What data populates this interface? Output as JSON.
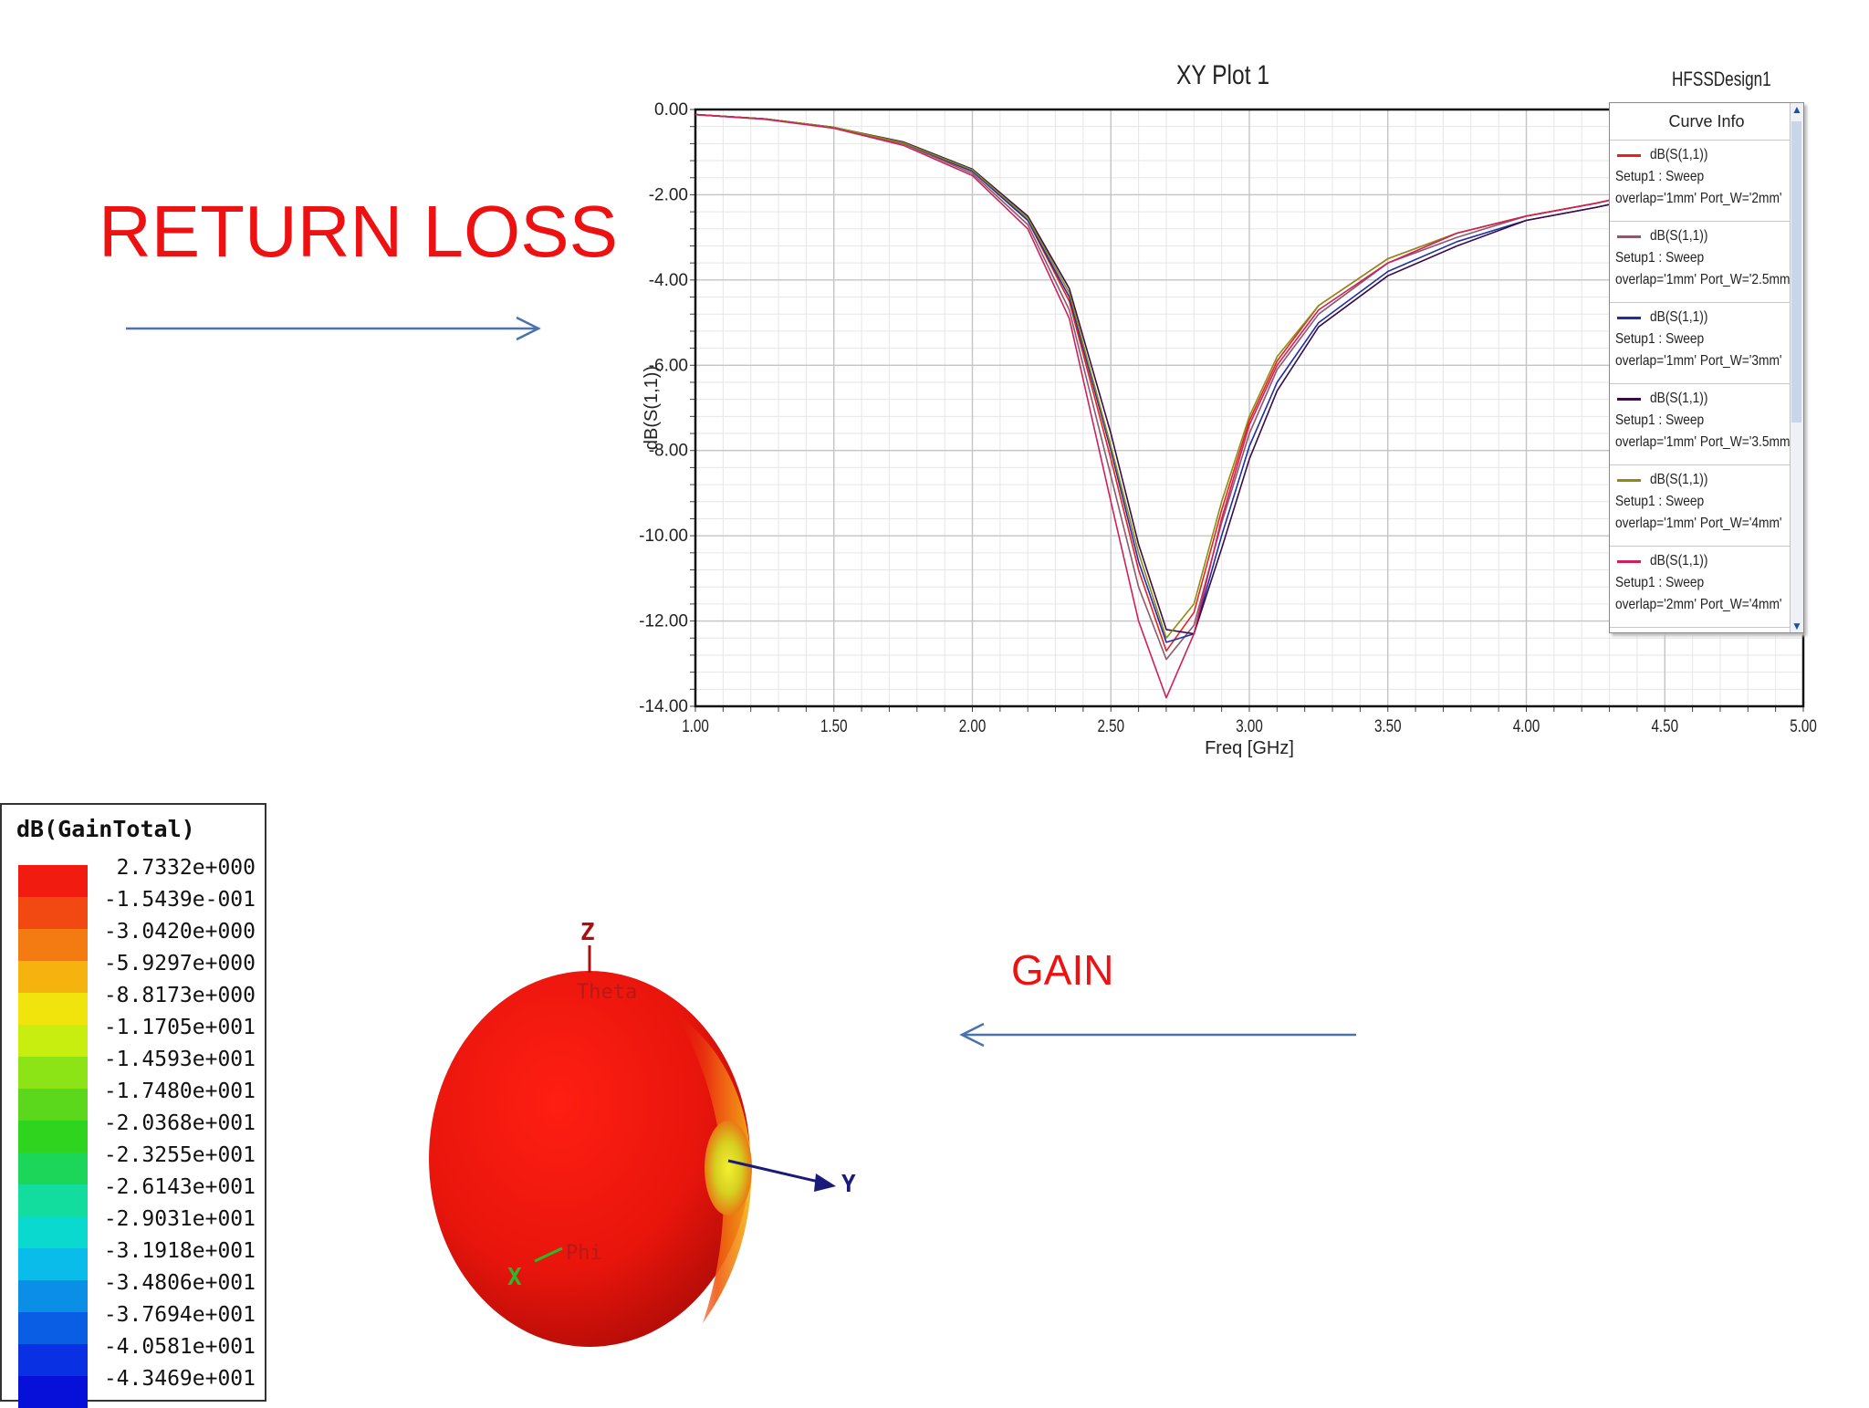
{
  "labels": {
    "return_loss": "RETURN LOSS",
    "gain": "GAIN"
  },
  "chart_data": [
    {
      "type": "line",
      "title": "XY Plot 1",
      "design_name": "HFSSDesign1",
      "xlabel": "Freq [GHz]",
      "ylabel": "dB(S(1,1))",
      "xlim": [
        1.0,
        5.0
      ],
      "ylim": [
        -14.0,
        0.0
      ],
      "grid": true,
      "legend_title": "Curve Info",
      "legend_placement": "top-right",
      "x_ticks": [
        "1.00",
        "1.50",
        "2.00",
        "2.50",
        "3.00",
        "3.50",
        "4.00",
        "4.50",
        "5.00"
      ],
      "y_ticks": [
        "0.00",
        "-2.00",
        "-4.00",
        "-6.00",
        "-8.00",
        "-10.00",
        "-12.00",
        "-14.00"
      ],
      "x": [
        1.0,
        1.25,
        1.5,
        1.75,
        2.0,
        2.2,
        2.35,
        2.5,
        2.6,
        2.7,
        2.8,
        2.9,
        3.0,
        3.1,
        3.25,
        3.5,
        3.75,
        4.0,
        4.25,
        4.32
      ],
      "series": [
        {
          "name": "dB(S(1,1))",
          "setup": "Setup1 : Sweep",
          "variables": "overlap='1mm' Port_W='2mm'",
          "color": "#e82020",
          "values": [
            -0.12,
            -0.22,
            -0.42,
            -0.8,
            -1.45,
            -2.6,
            -4.5,
            -8.2,
            -10.8,
            -12.7,
            -11.8,
            -9.4,
            -7.3,
            -5.9,
            -4.6,
            -3.5,
            -2.9,
            -2.5,
            -2.2,
            -2.1
          ]
        },
        {
          "name": "dB(S(1,1))",
          "setup": "Setup1 : Sweep",
          "variables": "overlap='1mm' Port_W='2.5mm'",
          "color": "#8a5a6e",
          "values": [
            -0.12,
            -0.22,
            -0.42,
            -0.8,
            -1.5,
            -2.7,
            -4.7,
            -8.6,
            -11.2,
            -12.9,
            -12.1,
            -9.7,
            -7.6,
            -6.1,
            -4.8,
            -3.6,
            -3.0,
            -2.5,
            -2.2,
            -2.1
          ]
        },
        {
          "name": "dB(S(1,1))",
          "setup": "Setup1 : Sweep",
          "variables": "overlap='1mm' Port_W='3mm'",
          "color": "#1c2fa8",
          "values": [
            -0.12,
            -0.22,
            -0.42,
            -0.78,
            -1.45,
            -2.6,
            -4.4,
            -8.0,
            -10.6,
            -12.5,
            -12.3,
            -10.0,
            -7.9,
            -6.4,
            -5.0,
            -3.8,
            -3.1,
            -2.6,
            -2.3,
            -2.2
          ]
        },
        {
          "name": "dB(S(1,1))",
          "setup": "Setup1 : Sweep",
          "variables": "overlap='1mm' Port_W='3.5mm'",
          "color": "#3a0c46",
          "values": [
            -0.12,
            -0.22,
            -0.42,
            -0.76,
            -1.4,
            -2.5,
            -4.2,
            -7.6,
            -10.2,
            -12.2,
            -12.3,
            -10.3,
            -8.2,
            -6.6,
            -5.1,
            -3.9,
            -3.2,
            -2.6,
            -2.3,
            -2.2
          ]
        },
        {
          "name": "dB(S(1,1))",
          "setup": "Setup1 : Sweep",
          "variables": "overlap='1mm' Port_W='4mm'",
          "color": "#8c8c10",
          "values": [
            -0.12,
            -0.22,
            -0.42,
            -0.78,
            -1.42,
            -2.55,
            -4.3,
            -7.9,
            -10.4,
            -12.4,
            -11.6,
            -9.2,
            -7.2,
            -5.8,
            -4.6,
            -3.5,
            -2.9,
            -2.5,
            -2.2,
            -2.1
          ]
        },
        {
          "name": "dB(S(1,1))",
          "setup": "Setup1 : Sweep",
          "variables": "overlap='2mm' Port_W='4mm'",
          "color": "#d0205a",
          "values": [
            -0.12,
            -0.23,
            -0.44,
            -0.84,
            -1.55,
            -2.8,
            -4.9,
            -9.2,
            -12.0,
            -13.8,
            -12.3,
            -9.6,
            -7.4,
            -6.0,
            -4.7,
            -3.6,
            -2.9,
            -2.5,
            -2.2,
            -2.1
          ]
        }
      ]
    },
    {
      "type": "heatmap",
      "title": "dB(GainTotal)",
      "colorbar_values": [
        "2.7332e+000",
        "-1.5439e-001",
        "-3.0420e+000",
        "-5.9297e+000",
        "-8.8173e+000",
        "-1.1705e+001",
        "-1.4593e+001",
        "-1.7480e+001",
        "-2.0368e+001",
        "-2.3255e+001",
        "-2.6143e+001",
        "-2.9031e+001",
        "-3.1918e+001",
        "-3.4806e+001",
        "-3.7694e+001",
        "-4.0581e+001",
        "-4.3469e+001"
      ],
      "colorbar_colors": [
        "#f21b10",
        "#f24812",
        "#f47a12",
        "#f6b20e",
        "#f0e40c",
        "#c8ee10",
        "#8ce416",
        "#5cd81c",
        "#2ed41e",
        "#1cd65a",
        "#12dc9e",
        "#0ad9d0",
        "#0abcea",
        "#0a8ee6",
        "#0a5ee4",
        "#0a30e4",
        "#0610d8"
      ],
      "axis_labels": {
        "z": "Z",
        "y": "Y",
        "x": "X",
        "theta": "Theta",
        "phi": "Phi"
      }
    }
  ]
}
